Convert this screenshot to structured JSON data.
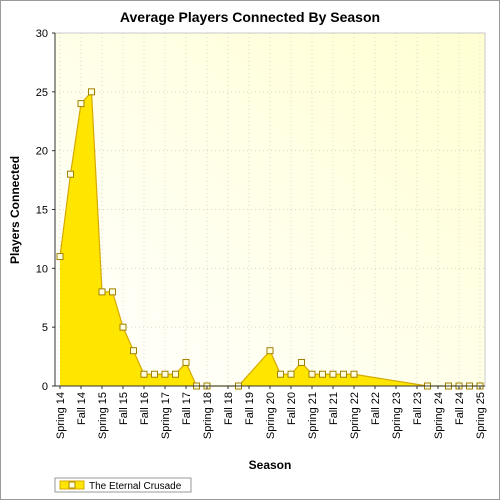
{
  "chart_data": {
    "type": "area",
    "title": "Average Players Connected By Season",
    "xlabel": "Season",
    "ylabel": "Players Connected",
    "ylim": [
      0,
      30
    ],
    "yticks": [
      0,
      5,
      10,
      15,
      20,
      25,
      30
    ],
    "categories": [
      "Spring 14",
      "Fall 14",
      "Spring 15",
      "Fall 15",
      "Fall 16",
      "Spring 17",
      "Fall 17",
      "Spring 18",
      "Fall 18",
      "Fall 19",
      "Spring 20",
      "Fall 20",
      "Spring 21",
      "Fall 21",
      "Spring 22",
      "Fall 22",
      "Spring 23",
      "Fall 23",
      "Spring 24",
      "Fall 24",
      "Spring 25"
    ],
    "grid": true,
    "legend_position": "bottom-left",
    "colors": {
      "fill": "#ffe600",
      "line": "#d7a900",
      "marker_fill": "#ffffe0",
      "plot_bg": "#ffffe6"
    },
    "series": [
      {
        "name": "The Eternal Crusade",
        "x": [
          0,
          0.5,
          1,
          1.5,
          2,
          2.5,
          3,
          3.5,
          4,
          4.5,
          5,
          5.5,
          6,
          6.5,
          7,
          8.5,
          10,
          10.5,
          11,
          11.5,
          12,
          12.5,
          13,
          13.5,
          14,
          17.5,
          18.5,
          19,
          19.5,
          20
        ],
        "values": [
          11,
          18,
          24,
          25,
          8,
          8,
          5,
          3,
          1,
          1,
          1,
          1,
          2,
          0,
          0,
          0,
          3,
          1,
          1,
          2,
          1,
          1,
          1,
          1,
          1,
          0,
          0,
          0,
          0,
          0
        ]
      }
    ]
  }
}
